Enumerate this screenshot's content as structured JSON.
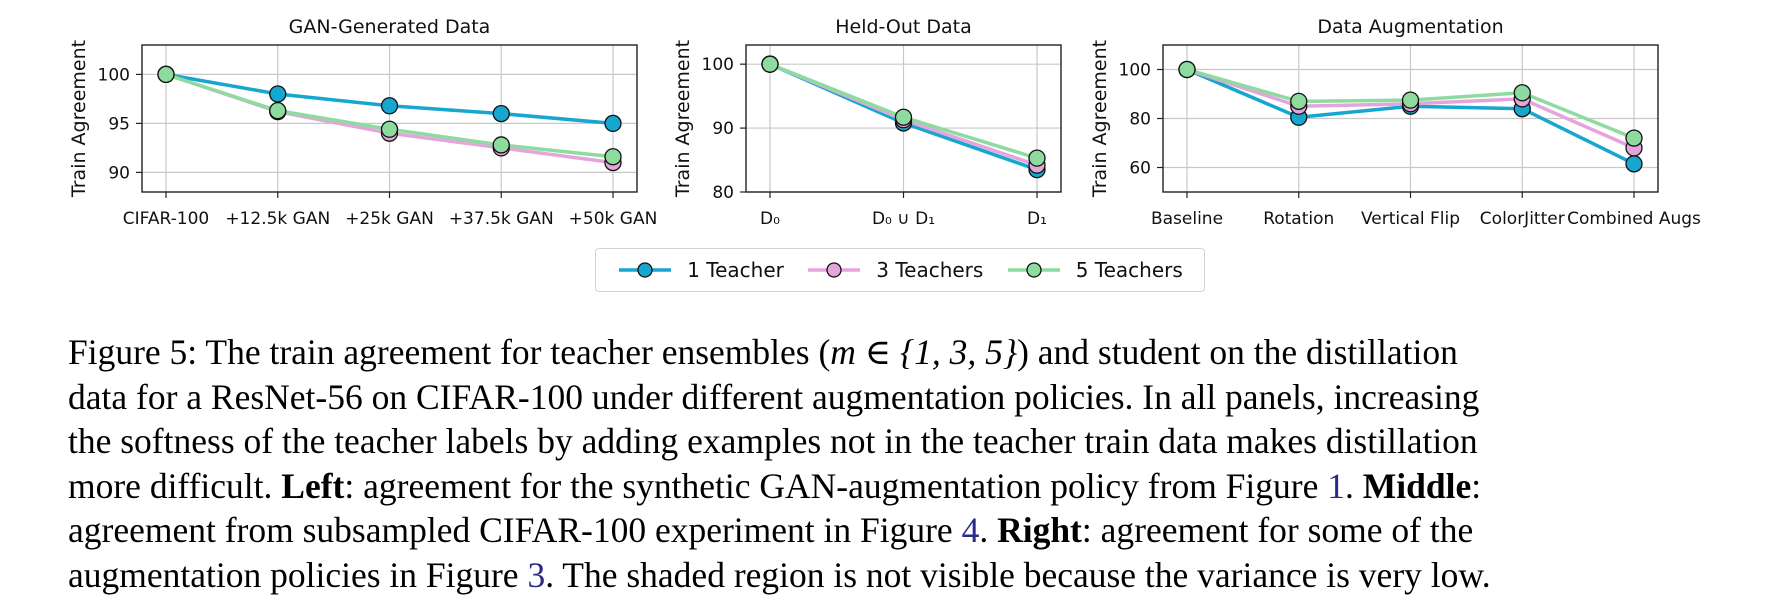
{
  "chart_data": [
    {
      "type": "line",
      "title": "GAN-Generated Data",
      "ylabel": "Train Agreement",
      "xlabel": "",
      "categories": [
        "CIFAR-100",
        "+12.5k GAN",
        "+25k GAN",
        "+37.5k GAN",
        "+50k GAN"
      ],
      "ylim": [
        88,
        103
      ],
      "yticks": [
        90,
        95,
        100
      ],
      "grid": true,
      "series": [
        {
          "name": "1 Teacher",
          "values": [
            100,
            98,
            96.8,
            96,
            95
          ]
        },
        {
          "name": "3 Teachers",
          "values": [
            100,
            96.2,
            94,
            92.5,
            91
          ]
        },
        {
          "name": "5 Teachers",
          "values": [
            100,
            96.3,
            94.4,
            92.8,
            91.6
          ]
        }
      ]
    },
    {
      "type": "line",
      "title": "Held-Out Data",
      "ylabel": "Train Agreement",
      "xlabel": "",
      "categories": [
        "D₀",
        "D₀ ∪ D₁",
        "D₁"
      ],
      "ylim": [
        80,
        103
      ],
      "yticks": [
        80,
        90,
        100
      ],
      "grid": true,
      "series": [
        {
          "name": "1 Teacher",
          "values": [
            100,
            90.8,
            83.5
          ]
        },
        {
          "name": "3 Teachers",
          "values": [
            100,
            91.3,
            84.2
          ]
        },
        {
          "name": "5 Teachers",
          "values": [
            100,
            91.7,
            85.3
          ]
        }
      ]
    },
    {
      "type": "line",
      "title": "Data Augmentation",
      "ylabel": "Train Agreement",
      "xlabel": "",
      "categories": [
        "Baseline",
        "Rotation",
        "Vertical Flip",
        "ColorJitter",
        "Combined Augs"
      ],
      "ylim": [
        50,
        110
      ],
      "yticks": [
        60,
        80,
        100
      ],
      "grid": true,
      "series": [
        {
          "name": "1 Teacher",
          "values": [
            100,
            80.5,
            85,
            84,
            61.5
          ]
        },
        {
          "name": "3 Teachers",
          "values": [
            100,
            85,
            86,
            88,
            68
          ]
        },
        {
          "name": "5 Teachers",
          "values": [
            100,
            87,
            87.5,
            90.5,
            72
          ]
        }
      ]
    }
  ],
  "legend": {
    "position": "bottom-center",
    "items": [
      {
        "label": "1 Teacher",
        "color": "#17a6cf"
      },
      {
        "label": "3 Teachers",
        "color": "#e5a4dc"
      },
      {
        "label": "5 Teachers",
        "color": "#8edb9f"
      }
    ]
  },
  "caption": {
    "lines": [
      [
        "Figure 5: The train agreement for teacher ensembles (",
        "m ∈ {1, 3, 5}",
        ") and student on the distillation"
      ],
      "data for a ResNet-56 on CIFAR-100 under different augmentation policies. In all panels, increasing",
      "the softness of the teacher labels by adding examples not in the teacher train data makes distillation"
    ],
    "l4_a": "more difficult. ",
    "l4_b": "Left",
    "l4_c": ": agreement for the synthetic GAN-augmentation policy from Figure ",
    "l4_ref": "1",
    "l4_d": ". ",
    "l4_e": "Middle",
    "l4_f": ":",
    "l5_a": "agreement from subsampled CIFAR-100 experiment in Figure ",
    "l5_ref": "4",
    "l5_b": ". ",
    "l5_c": "Right",
    "l5_d": ": agreement for some of the",
    "l6_a": "augmentation policies in Figure ",
    "l6_ref": "3",
    "l6_b": ". The shaded region is not visible because the variance is very low."
  }
}
